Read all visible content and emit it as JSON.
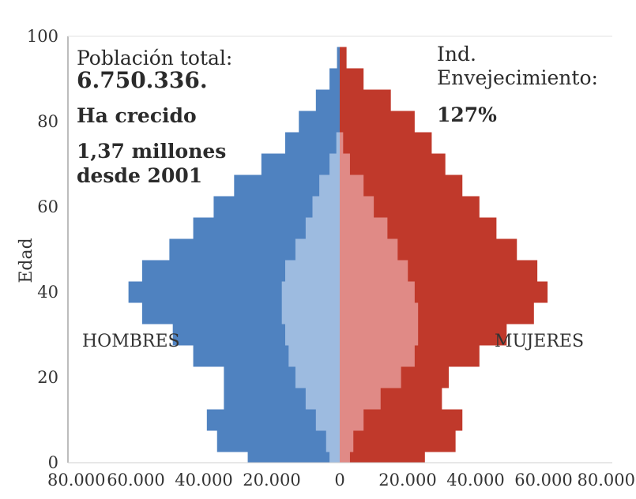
{
  "chart_data": {
    "type": "bar",
    "orientation": "horizontal",
    "ylabel": "Edad",
    "ylim": [
      0,
      100
    ],
    "xlim": [
      -80000,
      80000
    ],
    "y_ticks": [
      "0",
      "20",
      "40",
      "60",
      "80",
      "100"
    ],
    "x_ticks": [
      "80.000",
      "60.000",
      "40.000",
      "20.000",
      "0",
      "20.000",
      "40.000",
      "60.000",
      "80.000"
    ],
    "grid": false,
    "ages": [
      0,
      5,
      10,
      15,
      20,
      25,
      30,
      35,
      40,
      45,
      50,
      55,
      60,
      65,
      70,
      75,
      80,
      85,
      90,
      95,
      100
    ],
    "series": [
      {
        "name": "HOMBRES",
        "color": "#4f82c0",
        "values": [
          27000,
          36000,
          39000,
          34000,
          34000,
          43000,
          49000,
          58000,
          62000,
          58000,
          50000,
          43000,
          37000,
          31000,
          23000,
          16000,
          12000,
          7000,
          3000,
          800,
          0
        ]
      },
      {
        "name": "MUJERES",
        "color": "#c0392b",
        "values": [
          25000,
          34000,
          36000,
          30000,
          32000,
          41000,
          49000,
          57000,
          61000,
          58000,
          52000,
          46000,
          41000,
          36000,
          31000,
          27000,
          22000,
          15000,
          7000,
          2000,
          0
        ]
      },
      {
        "name": "HOMBRES",
        "color": "#9dbbe0",
        "values": [
          3000,
          4000,
          7000,
          10000,
          13000,
          15000,
          16000,
          17000,
          17000,
          16000,
          13000,
          10000,
          8000,
          6000,
          3000,
          1000,
          0,
          0,
          0,
          0,
          0
        ]
      },
      {
        "name": "MUJERES",
        "color": "#e08a86",
        "values": [
          3000,
          4000,
          7000,
          12000,
          18000,
          22000,
          23000,
          23000,
          22000,
          20000,
          17000,
          14000,
          10000,
          7000,
          3000,
          1000,
          0,
          0,
          0,
          0,
          0
        ]
      }
    ],
    "labels": {
      "left": "HOMBRES",
      "right": "MUJERES"
    },
    "annotations": {
      "total_title": "Población total:",
      "total_value": "6.750.336.",
      "growth_title": "Ha crecido",
      "growth_line1": "1,37 millones",
      "growth_line2": "desde 2001",
      "index_line1": "Ind.",
      "index_line2": "Envejecimiento:",
      "index_value": "127%"
    }
  }
}
